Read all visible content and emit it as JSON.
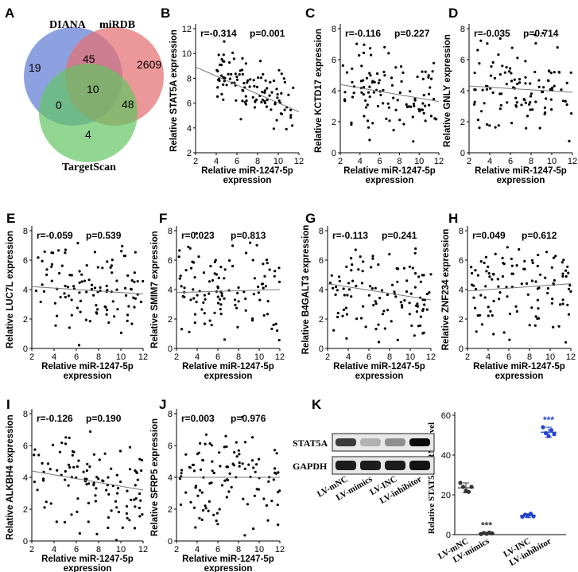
{
  "venn": {
    "letter": "A",
    "sets": [
      {
        "name": "DIANA",
        "color": "#6d85d6"
      },
      {
        "name": "miRDB",
        "color": "#e46f72"
      },
      {
        "name": "TargetScan",
        "color": "#63c463"
      }
    ],
    "regions": {
      "diana_only": "19",
      "mirdb_only": "2609",
      "targetscan_only": "4",
      "diana_mirdb": "45",
      "diana_targetscan": "0",
      "mirdb_targetscan": "48",
      "all_three": "10"
    }
  },
  "scatter_x_label_line1": "Relative miR-1247-5p",
  "scatter_x_label_line2": "expression",
  "chart_data": [
    {
      "panel": "B",
      "type": "scatter",
      "ylabel": "Relative STAT5A  expression",
      "r": "r=-0.314",
      "p": "p=0.001",
      "xlim": [
        2,
        12
      ],
      "ylim": [
        2,
        12
      ],
      "xticks": [
        2,
        4,
        6,
        8,
        10,
        12
      ],
      "yticks": [
        2,
        4,
        6,
        8,
        10,
        12
      ],
      "fit": {
        "x": [
          2,
          12
        ],
        "y": [
          8.9,
          5.3
        ]
      },
      "seed": 11,
      "n": 110,
      "ycenter": 7.3,
      "yspread": 1.8,
      "slope": -0.36,
      "xmin": 4,
      "xmax": 11.5
    },
    {
      "panel": "C",
      "type": "scatter",
      "ylabel": "Relative KCTD17 expression",
      "r": "r=-0.116",
      "p": "p=0.227",
      "xlim": [
        2,
        12
      ],
      "ylim": [
        0,
        8
      ],
      "xticks": [
        2,
        4,
        6,
        8,
        10,
        12
      ],
      "yticks": [
        0,
        2,
        4,
        6,
        8
      ],
      "fit": {
        "x": [
          2,
          12
        ],
        "y": [
          4.4,
          3.3
        ]
      },
      "seed": 23,
      "n": 110,
      "ycenter": 3.9,
      "yspread": 2.3,
      "slope": -0.11,
      "xmin": 2.2,
      "xmax": 12
    },
    {
      "panel": "D",
      "type": "scatter",
      "ylabel": "Relative GNLY expression",
      "r": "r=-0.035",
      "p": "p=0.714",
      "xlim": [
        2,
        12
      ],
      "ylim": [
        0,
        8
      ],
      "xticks": [
        2,
        4,
        6,
        8,
        10,
        12
      ],
      "yticks": [
        0,
        2,
        4,
        6,
        8
      ],
      "fit": {
        "x": [
          2,
          12
        ],
        "y": [
          4.3,
          3.9
        ]
      },
      "seed": 37,
      "n": 110,
      "ycenter": 4.1,
      "yspread": 2.3,
      "slope": -0.04,
      "xmin": 2.2,
      "xmax": 12
    },
    {
      "panel": "E",
      "type": "scatter",
      "ylabel": "Relative LUC7L expression",
      "r": "r=-0.059",
      "p": "p=0.539",
      "xlim": [
        2,
        12
      ],
      "ylim": [
        0,
        8
      ],
      "xticks": [
        2,
        4,
        6,
        8,
        10,
        12
      ],
      "yticks": [
        0,
        2,
        4,
        6,
        8
      ],
      "fit": {
        "x": [
          2,
          12
        ],
        "y": [
          4.2,
          3.7
        ]
      },
      "seed": 41,
      "n": 110,
      "ycenter": 3.9,
      "yspread": 2.3,
      "slope": -0.05,
      "xmin": 2.2,
      "xmax": 12
    },
    {
      "panel": "F",
      "type": "scatter",
      "ylabel": "Relative SMIM7 expression",
      "r": "r=0.023",
      "p": "p=0.813",
      "xlim": [
        2,
        12
      ],
      "ylim": [
        0,
        8
      ],
      "xticks": [
        2,
        4,
        6,
        8,
        10,
        12
      ],
      "yticks": [
        0,
        2,
        4,
        6,
        8
      ],
      "fit": {
        "x": [
          2,
          12
        ],
        "y": [
          3.8,
          4.0
        ]
      },
      "seed": 53,
      "n": 110,
      "ycenter": 3.9,
      "yspread": 2.3,
      "slope": 0.02,
      "xmin": 2.2,
      "xmax": 12
    },
    {
      "panel": "G",
      "type": "scatter",
      "ylabel": "Relative B4GALT3 expression",
      "r": "r=-0.113",
      "p": "p=0.241",
      "xlim": [
        2,
        12
      ],
      "ylim": [
        0,
        8
      ],
      "xticks": [
        2,
        4,
        6,
        8,
        10,
        12
      ],
      "yticks": [
        0,
        2,
        4,
        6,
        8
      ],
      "fit": {
        "x": [
          2,
          12
        ],
        "y": [
          4.4,
          3.3
        ]
      },
      "seed": 67,
      "n": 110,
      "ycenter": 3.9,
      "yspread": 2.3,
      "slope": -0.11,
      "xmin": 2.2,
      "xmax": 12
    },
    {
      "panel": "H",
      "type": "scatter",
      "ylabel": "Relative ZNF234  expression",
      "r": "r=0.049",
      "p": "p=0.612",
      "xlim": [
        2,
        12
      ],
      "ylim": [
        0,
        8
      ],
      "xticks": [
        2,
        4,
        6,
        8,
        10,
        12
      ],
      "yticks": [
        0,
        2,
        4,
        6,
        8
      ],
      "fit": {
        "x": [
          2,
          12
        ],
        "y": [
          3.9,
          4.4
        ]
      },
      "seed": 79,
      "n": 110,
      "ycenter": 4.1,
      "yspread": 2.3,
      "slope": 0.05,
      "xmin": 2.2,
      "xmax": 12
    },
    {
      "panel": "I",
      "type": "scatter",
      "ylabel": "Relative ALKBH4  expression",
      "r": "r=-0.126",
      "p": "p=0.190",
      "xlim": [
        2,
        12
      ],
      "ylim": [
        0,
        8
      ],
      "xticks": [
        2,
        4,
        6,
        8,
        10,
        12
      ],
      "yticks": [
        0,
        2,
        4,
        6,
        8
      ],
      "fit": {
        "x": [
          2,
          12
        ],
        "y": [
          4.4,
          3.2
        ]
      },
      "seed": 83,
      "n": 110,
      "ycenter": 3.8,
      "yspread": 2.3,
      "slope": -0.12,
      "xmin": 2.2,
      "xmax": 12
    },
    {
      "panel": "J",
      "type": "scatter",
      "ylabel": "Relative SFRP5  expression",
      "r": "r=0.003",
      "p": "p=0.976",
      "xlim": [
        2,
        12
      ],
      "ylim": [
        0,
        8
      ],
      "xticks": [
        2,
        4,
        6,
        8,
        10,
        12
      ],
      "yticks": [
        0,
        2,
        4,
        6,
        8
      ],
      "fit": {
        "x": [
          2,
          12
        ],
        "y": [
          4.0,
          4.0
        ]
      },
      "seed": 97,
      "n": 110,
      "ycenter": 3.9,
      "yspread": 2.3,
      "slope": 0.0,
      "xmin": 2.2,
      "xmax": 12
    },
    {
      "panel": "K",
      "type": "dot-plot",
      "ylabel": "Relative STAT5A mRNA level",
      "ylim": [
        0,
        60
      ],
      "yticks": [
        0,
        20,
        40,
        60
      ],
      "categories": [
        "LV-mNC",
        "LV-mimics",
        "LV-INC",
        "LV-inhibitor"
      ],
      "colors": [
        "#333333",
        "#333333",
        "#2244cc",
        "#2244cc"
      ],
      "means": [
        23.5,
        0.6,
        9.5,
        51.5
      ],
      "sd": [
        2.5,
        0.4,
        1.0,
        2.5
      ],
      "points": [
        [
          26,
          24,
          22,
          21.5,
          24
        ],
        [
          0.3,
          0.8,
          0.4,
          1.0,
          0.6
        ],
        [
          9,
          10,
          9.5,
          10.5,
          9.2
        ],
        [
          54,
          51,
          49.5,
          52.5,
          50.5
        ]
      ],
      "sig": [
        "",
        "***",
        "",
        "***"
      ]
    }
  ],
  "western": {
    "bands": [
      "STAT5A",
      "GAPDH"
    ],
    "lanes": [
      "LV-mNC",
      "LV-mimics",
      "LV-INC",
      "LV-inhibitor"
    ],
    "intensity": {
      "STAT5A": [
        0.75,
        0.12,
        0.3,
        1.0
      ],
      "GAPDH": [
        0.9,
        0.9,
        0.9,
        0.95
      ]
    }
  }
}
